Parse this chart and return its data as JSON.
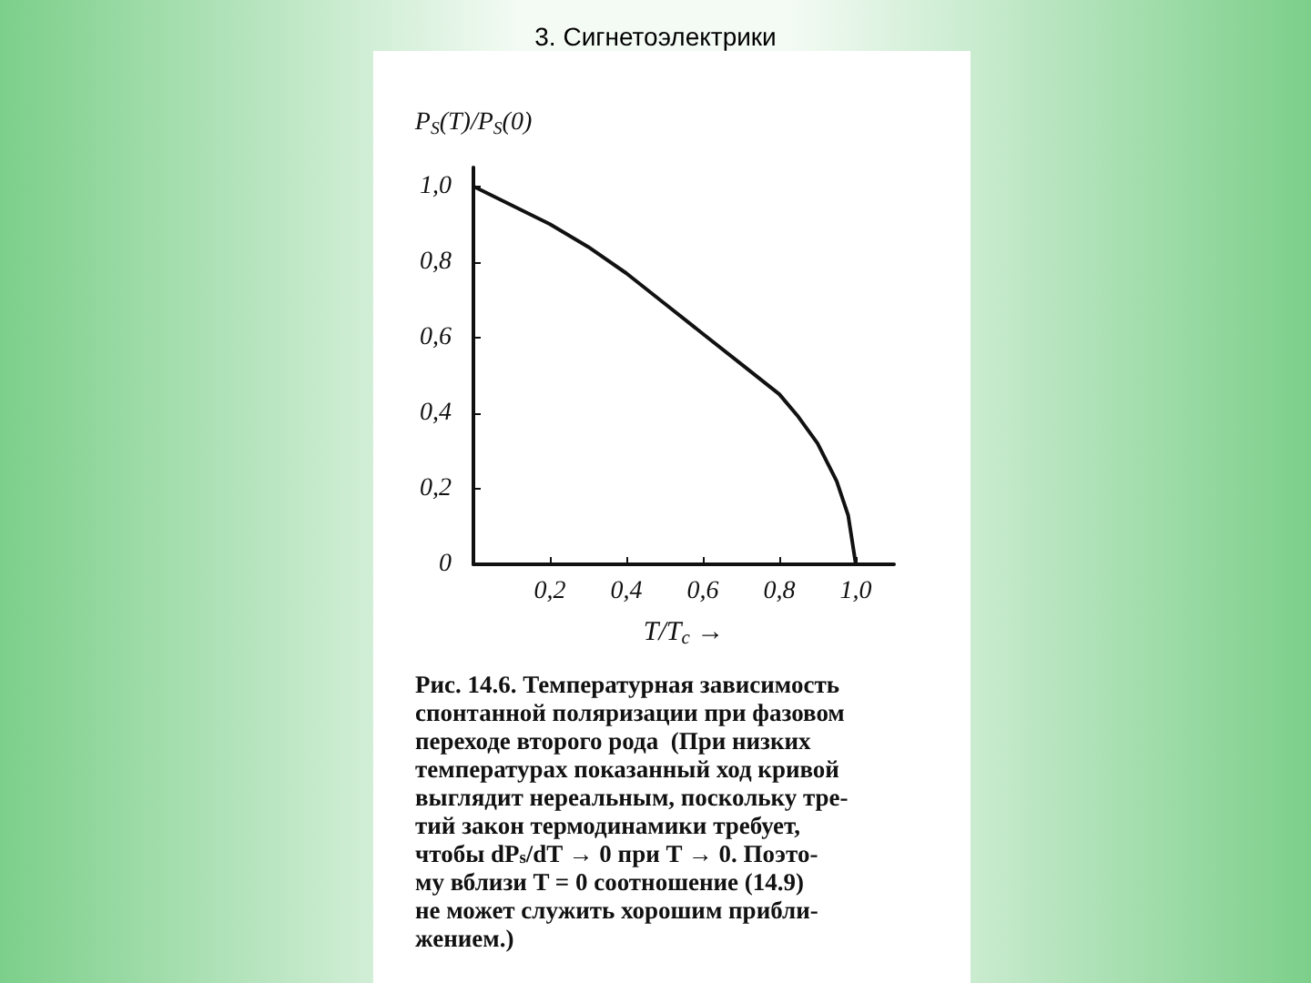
{
  "chart_data": {
    "type": "line",
    "title": "3. Сигнетоэлектрики",
    "xlabel": "T/T$_{c}$ →",
    "ylabel": "P$_{S}$(T)/P$_{S}$(0)",
    "x": [
      0,
      0.1,
      0.2,
      0.3,
      0.4,
      0.5,
      0.6,
      0.7,
      0.8,
      0.85,
      0.9,
      0.95,
      0.98,
      1.0
    ],
    "series": [
      {
        "color": "#111111",
        "values": [
          1.0,
          0.95,
          0.9,
          0.84,
          0.77,
          0.69,
          0.61,
          0.53,
          0.45,
          0.39,
          0.32,
          0.22,
          0.13,
          0
        ]
      }
    ],
    "xlim": [
      0,
      1.1
    ],
    "ylim": [
      0,
      1.05
    ],
    "xticks": [
      {
        "value": 0,
        "label": null
      },
      {
        "value": 0.2,
        "label": "0,2"
      },
      {
        "value": 0.4,
        "label": "0,4"
      },
      {
        "value": 0.6,
        "label": "0,6"
      },
      {
        "value": 0.8,
        "label": "0,8"
      },
      {
        "value": 1.0,
        "label": "1,0"
      }
    ],
    "yticks": [
      0,
      {
        "value": 0.2,
        "label": "0,2"
      },
      {
        "value": 0.4,
        "label": "0,4"
      },
      {
        "value": 0.6,
        "label": "0,6"
      },
      {
        "value": 0.8,
        "label": "0,8"
      },
      {
        "value": 1.0,
        "label": "1,0"
      }
    ],
    "grid": false,
    "marker": "none",
    "line_style": "solid",
    "annotations": [
      "Рис. 14.6. Температурная зависимость\nспонтанной поляризации при фазовом\nпереходе второго рода  (При низких\nтемпературах показанный ход кривой\nвыглядит нереальным, поскольку тре-\nтий закон термодинамики требует,\nчтобы dP$_{s}$/dT → 0 при T → 0. Поэто-\nму вблизи T = 0 соотношение (14.9)\nне может служить хорошим прибли-\nжением.)"
    ]
  }
}
